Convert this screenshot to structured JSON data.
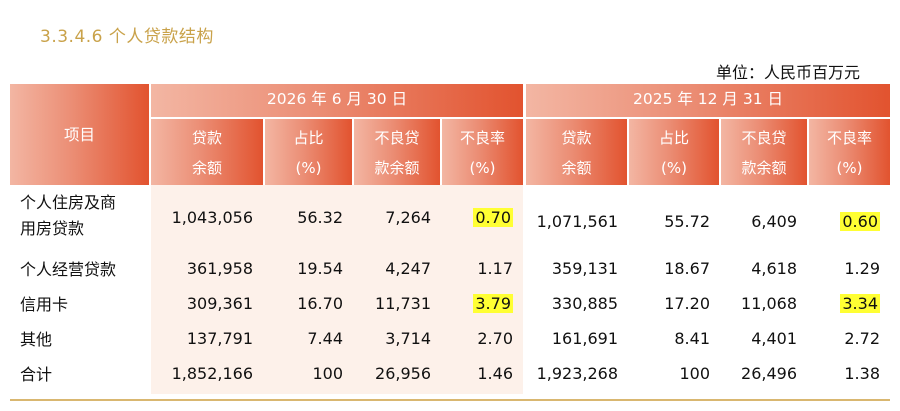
{
  "section_title": "3.3.4.6  个人贷款结构",
  "unit": "单位：人民币百万元",
  "header": {
    "item": "项目",
    "period1": "2026 年 6 月 30 日",
    "period2": "2025 年 12 月 31 日",
    "columns": [
      {
        "line1": "贷款",
        "line2": "余额"
      },
      {
        "line1": "占比",
        "line2": "(%)"
      },
      {
        "line1": "不良贷",
        "line2": "款余额"
      },
      {
        "line1": "不良率",
        "line2": "(%)"
      }
    ]
  },
  "rows": [
    {
      "label_line1": "个人住房及商",
      "label_line2": "用房贷款",
      "p1": [
        "1,043,056",
        "56.32",
        "7,264",
        "0.70"
      ],
      "p2": [
        "1,071,561",
        "55.72",
        "6,409",
        "0.60"
      ],
      "p1_highlight": true,
      "p2_highlight": true
    },
    {
      "label_line1": "个人经营贷款",
      "label_line2": "",
      "p1": [
        "361,958",
        "19.54",
        "4,247",
        "1.17"
      ],
      "p2": [
        "359,131",
        "18.67",
        "4,618",
        "1.29"
      ],
      "p1_highlight": false,
      "p2_highlight": false
    },
    {
      "label_line1": "信用卡",
      "label_line2": "",
      "p1": [
        "309,361",
        "16.70",
        "11,731",
        "3.79"
      ],
      "p2": [
        "330,885",
        "17.20",
        "11,068",
        "3.34"
      ],
      "p1_highlight": true,
      "p2_highlight": true
    },
    {
      "label_line1": "其他",
      "label_line2": "",
      "p1": [
        "137,791",
        "7.44",
        "3,714",
        "2.70"
      ],
      "p2": [
        "161,691",
        "8.41",
        "4,401",
        "2.72"
      ],
      "p1_highlight": false,
      "p2_highlight": false
    },
    {
      "label_line1": "合计",
      "label_line2": "",
      "p1": [
        "1,852,166",
        "100",
        "26,956",
        "1.46"
      ],
      "p2": [
        "1,923,268",
        "100",
        "26,496",
        "1.38"
      ],
      "p1_highlight": false,
      "p2_highlight": false
    }
  ],
  "colors": {
    "title": "#c9a24a",
    "header_start": "#f3b6a3",
    "header_end": "#e2532f",
    "highlight": "#ffff33",
    "row_bg": "#fdf1ea"
  }
}
